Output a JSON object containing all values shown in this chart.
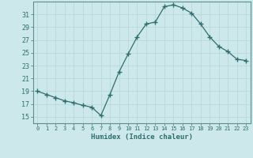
{
  "x": [
    0,
    1,
    2,
    3,
    4,
    5,
    6,
    7,
    8,
    9,
    10,
    11,
    12,
    13,
    14,
    15,
    16,
    17,
    18,
    19,
    20,
    21,
    22,
    23
  ],
  "y": [
    19,
    18.5,
    18,
    17.5,
    17.2,
    16.8,
    16.5,
    15.2,
    18.5,
    22,
    24.8,
    27.5,
    29.5,
    29.8,
    32.2,
    32.5,
    32,
    31.2,
    29.5,
    27.5,
    26,
    25.2,
    24,
    23.8
  ],
  "xlabel": "Humidex (Indice chaleur)",
  "ylim": [
    14,
    33
  ],
  "xlim": [
    -0.5,
    23.5
  ],
  "yticks": [
    15,
    17,
    19,
    21,
    23,
    25,
    27,
    29,
    31
  ],
  "xticks": [
    0,
    1,
    2,
    3,
    4,
    5,
    6,
    7,
    8,
    9,
    10,
    11,
    12,
    13,
    14,
    15,
    16,
    17,
    18,
    19,
    20,
    21,
    22,
    23
  ],
  "line_color": "#2e6e6e",
  "marker": "+",
  "marker_size": 4,
  "bg_color": "#cce8ea",
  "grid_color": "#b8d8da",
  "tick_label_color": "#2e6e6e",
  "xlabel_color": "#2e6e6e",
  "spine_color": "#5a9090"
}
